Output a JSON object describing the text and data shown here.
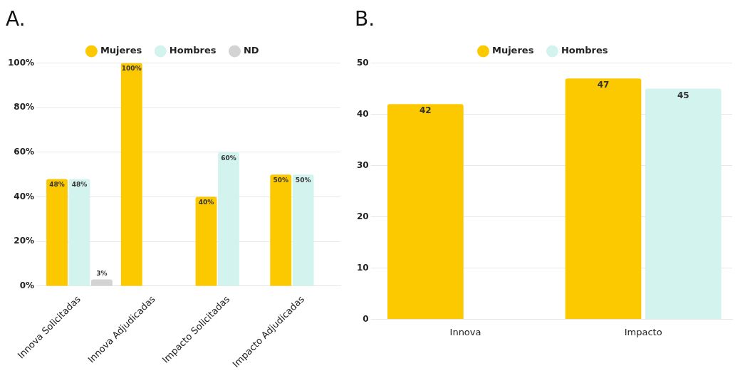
{
  "chart_data": [
    {
      "type": "bar",
      "title": "A.",
      "categories": [
        "Innova Solicitadas",
        "Innova Adjudicadas",
        "Impacto Solicitadas",
        "Impacto Adjudicadas"
      ],
      "series": [
        {
          "name": "Mujeres",
          "color": "#fcc900",
          "values": [
            48,
            100,
            40,
            50
          ],
          "value_labels": [
            "48%",
            "100%",
            "40%",
            "50%"
          ]
        },
        {
          "name": "Hombres",
          "color": "#d3f3ee",
          "values": [
            48,
            null,
            60,
            50
          ],
          "value_labels": [
            "48%",
            null,
            "60%",
            "50%"
          ]
        },
        {
          "name": "ND",
          "color": "#d3d3d3",
          "values": [
            3,
            null,
            null,
            null
          ],
          "value_labels": [
            "3%",
            null,
            null,
            null
          ]
        }
      ],
      "ylim": [
        0,
        100
      ],
      "yticks": [
        {
          "value": 0,
          "label": "0%"
        },
        {
          "value": 20,
          "label": "20%"
        },
        {
          "value": 40,
          "label": "40%"
        },
        {
          "value": 60,
          "label": "60%"
        },
        {
          "value": 80,
          "label": "80%"
        },
        {
          "value": 100,
          "label": "100%"
        }
      ],
      "grid": "y",
      "legend": "top"
    },
    {
      "type": "bar",
      "title": "B.",
      "categories": [
        "Innova",
        "Impacto"
      ],
      "series": [
        {
          "name": "Mujeres",
          "color": "#fcc900",
          "values": [
            42,
            47
          ]
        },
        {
          "name": "Hombres",
          "color": "#d3f3ee",
          "values": [
            null,
            45
          ]
        }
      ],
      "ylim": [
        0,
        50
      ],
      "yticks": [
        0,
        10,
        20,
        30,
        40,
        50
      ],
      "grid": "y",
      "legend": "top",
      "data_labels": true
    }
  ]
}
